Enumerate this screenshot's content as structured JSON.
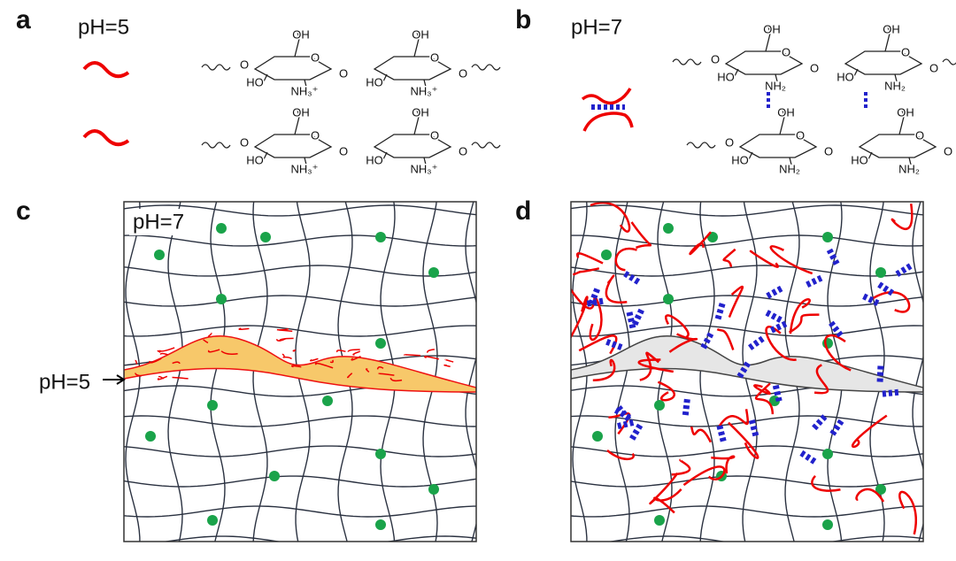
{
  "panels": [
    {
      "label": "a",
      "condition": "pH=5",
      "chains": [
        [
          "O",
          "OH",
          "O",
          "HO",
          "NH₃⁺",
          "O",
          "OH",
          "O",
          "HO",
          "NH₃⁺",
          "O"
        ],
        [
          "O",
          "OH",
          "O",
          "HO",
          "NH₃⁺",
          "O",
          "OH",
          "O",
          "HO",
          "NH₃⁺",
          "O"
        ]
      ]
    },
    {
      "label": "b",
      "condition": "pH=7",
      "chains": [
        [
          "O",
          "OH",
          "O",
          "HO",
          "NH₂",
          "O",
          "OH",
          "O",
          "HO",
          "NH₂",
          "O"
        ],
        [
          "O",
          "OH",
          "O",
          "HO",
          "NH₂",
          "O",
          "OH",
          "O",
          "HO",
          "NH₂",
          "O"
        ]
      ],
      "bond_partners": [
        "OH",
        "OH"
      ]
    },
    {
      "label": "c",
      "condition": "pH=7",
      "interface_label": "pH=5"
    },
    {
      "label": "d"
    }
  ]
}
